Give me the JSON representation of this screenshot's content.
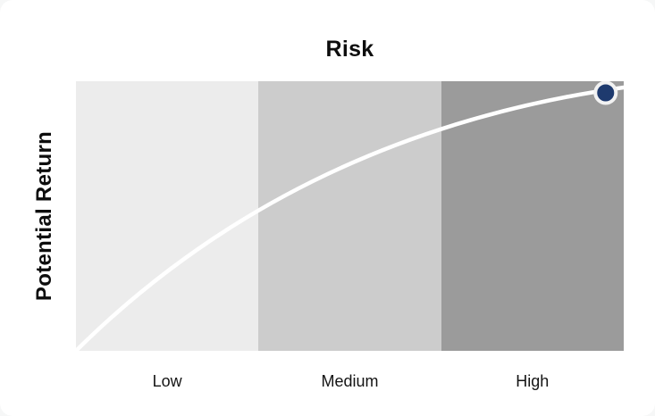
{
  "colors": {
    "page_background": "#f6f7f7",
    "card_background": "#ffffff"
  },
  "chart_data": {
    "type": "line",
    "title": "Risk",
    "xlabel": "Risk",
    "ylabel": "Potential Return",
    "categories": [
      "Low",
      "Medium",
      "High"
    ],
    "grid": false,
    "legend": "none",
    "bands": [
      {
        "label": "Low",
        "color": "#ececec"
      },
      {
        "label": "Medium",
        "color": "#cccccc"
      },
      {
        "label": "High",
        "color": "#9b9b9b"
      }
    ],
    "curve": {
      "description": "concave increasing curve from bottom-left (low risk, low return) to top-right (high risk, high return)",
      "color": "#ffffff",
      "stroke_width": 4.5,
      "bezier_pct": {
        "start": [
          0,
          0
        ],
        "control": [
          40,
          80.5
        ],
        "end": [
          100,
          97.7
        ]
      }
    },
    "marker": {
      "x_pct": 96.7,
      "y_pct": 95.7,
      "fill": "#1e3a6e",
      "ring_color": "#f2f2f2",
      "radius": 11.5,
      "ring_width": 4
    }
  }
}
